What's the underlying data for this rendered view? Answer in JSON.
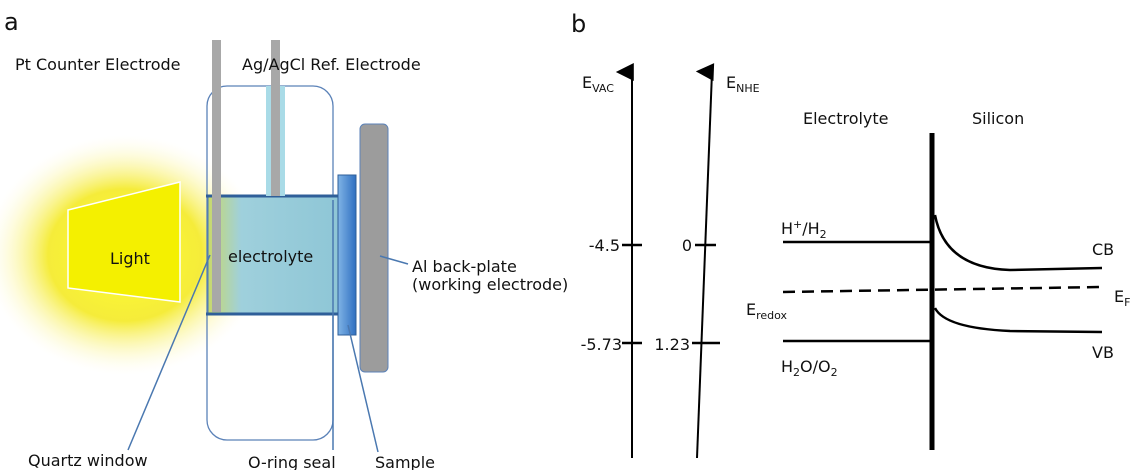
{
  "panel_a": {
    "label": "a",
    "pt_electrode": "Pt Counter Electrode",
    "ref_electrode": "Ag/AgCl Ref. Electrode",
    "light": "Light",
    "electrolyte": "electrolyte",
    "back_plate": "Al back-plate",
    "back_plate_note": "(working electrode)",
    "quartz": "Quartz window",
    "oring": "O-ring seal",
    "sample": "Sample"
  },
  "panel_b": {
    "label": "b",
    "e_vac": {
      "main": "E",
      "sub": "VAC"
    },
    "e_nhe": {
      "main": "E",
      "sub": "NHE"
    },
    "electrolyte": "Electrolyte",
    "silicon": "Silicon",
    "vac_upper": "-4.5",
    "nhe_upper": "0",
    "vac_lower": "-5.73",
    "nhe_lower": "1.23",
    "h_couple": {
      "a": "H",
      "sup": "+",
      "b": "/H",
      "sub": "2"
    },
    "o_couple": {
      "a": "H",
      "sub1": "2",
      "b": "O/O",
      "sub2": "2"
    },
    "cb": "CB",
    "vb": "VB",
    "ef": {
      "main": "E",
      "sub": "F"
    },
    "eredox": {
      "main": "E",
      "sub": "redox"
    }
  }
}
